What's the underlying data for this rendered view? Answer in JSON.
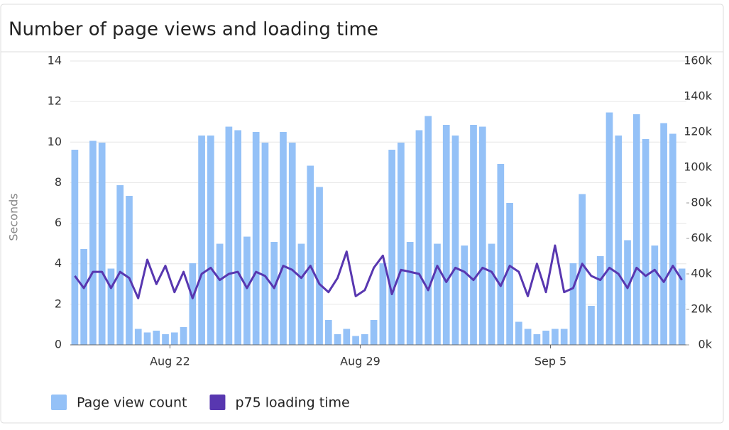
{
  "chart_data": {
    "type": "combo",
    "title": "Number of page views and loading time",
    "y_label": "Seconds",
    "categories": [
      null,
      null,
      null,
      null,
      null,
      null,
      null,
      null,
      null,
      null,
      null,
      "Aug 22",
      null,
      null,
      null,
      null,
      null,
      null,
      null,
      null,
      null,
      null,
      null,
      null,
      null,
      null,
      null,
      null,
      null,
      null,
      null,
      null,
      "Aug 29",
      null,
      null,
      null,
      null,
      null,
      null,
      null,
      null,
      null,
      null,
      null,
      null,
      null,
      null,
      null,
      null,
      null,
      null,
      null,
      null,
      "Sep 5",
      null,
      null,
      null,
      null,
      null,
      null,
      null,
      null,
      null,
      null,
      null,
      null,
      null,
      null
    ],
    "ylim": [
      0,
      14
    ],
    "yticks": [
      0,
      2,
      4,
      6,
      8,
      10,
      12,
      14
    ],
    "y2lim": [
      0,
      160000
    ],
    "y2ticks": [
      {
        "value": 0,
        "label": "0k"
      },
      {
        "value": 20000,
        "label": "20k"
      },
      {
        "value": 40000,
        "label": "40k"
      },
      {
        "value": 60000,
        "label": "60k"
      },
      {
        "value": 80000,
        "label": "80k"
      },
      {
        "value": 100000,
        "label": "100k"
      },
      {
        "value": 120000,
        "label": "120k"
      },
      {
        "value": 140000,
        "label": "140k"
      },
      {
        "value": 160000,
        "label": "160k"
      }
    ],
    "grid": true,
    "legend": "bottom-left",
    "series": [
      {
        "name": "Page view count",
        "type": "bar",
        "axis": "y2",
        "color": "#94c1f7",
        "values": [
          110000,
          54000,
          115000,
          114000,
          43000,
          90000,
          84000,
          9000,
          7000,
          8000,
          6000,
          7000,
          10000,
          46000,
          118000,
          118000,
          57000,
          123000,
          121000,
          61000,
          120000,
          114000,
          58000,
          120000,
          114000,
          57000,
          101000,
          89000,
          14000,
          6000,
          9000,
          5000,
          6000,
          14000,
          46000,
          110000,
          114000,
          58000,
          121000,
          129000,
          57000,
          124000,
          118000,
          56000,
          124000,
          123000,
          57000,
          102000,
          80000,
          13000,
          9000,
          6000,
          8000,
          9000,
          9000,
          46000,
          85000,
          22000,
          50000,
          131000,
          118000,
          59000,
          130000,
          116000,
          56000,
          125000,
          119000,
          43000
        ]
      },
      {
        "name": "p75 loading time",
        "type": "line",
        "color": "#5837b0",
        "values": [
          3.4,
          2.8,
          3.6,
          3.6,
          2.8,
          3.6,
          3.3,
          2.3,
          4.2,
          3.0,
          3.9,
          2.6,
          3.6,
          2.3,
          3.5,
          3.8,
          3.2,
          3.5,
          3.6,
          2.8,
          3.6,
          3.4,
          2.8,
          3.9,
          3.7,
          3.3,
          3.9,
          3.0,
          2.6,
          3.3,
          4.6,
          2.4,
          2.7,
          3.8,
          4.4,
          2.5,
          3.7,
          3.6,
          3.5,
          2.7,
          3.9,
          3.1,
          3.8,
          3.6,
          3.2,
          3.8,
          3.6,
          2.9,
          3.9,
          3.6,
          2.4,
          4.0,
          2.6,
          4.9,
          2.6,
          2.8,
          4.0,
          3.4,
          3.2,
          3.8,
          3.5,
          2.8,
          3.8,
          3.4,
          3.7,
          3.1,
          3.9,
          3.2
        ]
      }
    ]
  }
}
